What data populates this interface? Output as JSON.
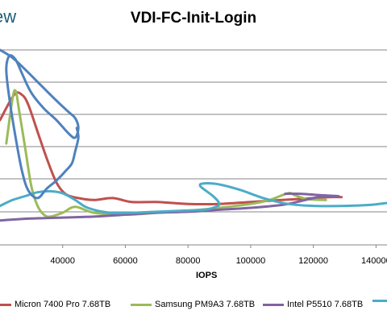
{
  "brand": "ew",
  "chart_data": {
    "type": "line",
    "title": "VDI-FC-Init-Login",
    "xlabel": "IOPS",
    "ylabel": "",
    "x_ticks": [
      "40000",
      "60000",
      "80000",
      "100000",
      "120000",
      "140000"
    ],
    "x_tick_values": [
      40000,
      60000,
      80000,
      100000,
      120000,
      140000
    ],
    "xlim": [
      20000,
      143500
    ],
    "ylim": [
      0,
      1
    ],
    "grid": true,
    "legend_position": "bottom",
    "series": [
      {
        "name": "Micron 7400 Pro 7.68TB",
        "color": "#c0504d",
        "points": [
          [
            20000,
            0.64
          ],
          [
            24500,
            0.77
          ],
          [
            27000,
            0.77
          ],
          [
            29000,
            0.72
          ],
          [
            32000,
            0.58
          ],
          [
            35000,
            0.44
          ],
          [
            38000,
            0.32
          ],
          [
            41000,
            0.26
          ],
          [
            45000,
            0.24
          ],
          [
            50000,
            0.23
          ],
          [
            56000,
            0.24
          ],
          [
            62000,
            0.22
          ],
          [
            70000,
            0.22
          ],
          [
            80000,
            0.21
          ],
          [
            90000,
            0.21
          ],
          [
            100000,
            0.22
          ],
          [
            110000,
            0.23
          ],
          [
            120000,
            0.24
          ],
          [
            125000,
            0.245
          ],
          [
            129000,
            0.245
          ]
        ]
      },
      {
        "name": "Samsung PM9A3 7.68TB",
        "color": "#9bbb59",
        "points": [
          [
            22000,
            0.52
          ],
          [
            24000,
            0.75
          ],
          [
            25000,
            0.79
          ],
          [
            26000,
            0.7
          ],
          [
            28000,
            0.5
          ],
          [
            30000,
            0.3
          ],
          [
            32000,
            0.2
          ],
          [
            34000,
            0.155
          ],
          [
            36000,
            0.145
          ],
          [
            40000,
            0.165
          ],
          [
            44000,
            0.195
          ],
          [
            50000,
            0.165
          ],
          [
            60000,
            0.155
          ],
          [
            70000,
            0.165
          ],
          [
            80000,
            0.175
          ],
          [
            90000,
            0.19
          ],
          [
            100000,
            0.21
          ],
          [
            106000,
            0.23
          ],
          [
            112000,
            0.265
          ],
          [
            114000,
            0.255
          ],
          [
            118000,
            0.235
          ],
          [
            124000,
            0.23
          ]
        ]
      },
      {
        "name": "Intel P5510 7.68TB",
        "color": "#8064a2",
        "points": [
          [
            20000,
            0.125
          ],
          [
            30000,
            0.135
          ],
          [
            40000,
            0.14
          ],
          [
            50000,
            0.145
          ],
          [
            60000,
            0.155
          ],
          [
            70000,
            0.165
          ],
          [
            80000,
            0.17
          ],
          [
            90000,
            0.18
          ],
          [
            100000,
            0.19
          ],
          [
            110000,
            0.205
          ],
          [
            116000,
            0.225
          ],
          [
            120000,
            0.24
          ],
          [
            124000,
            0.25
          ],
          [
            128000,
            0.25
          ],
          [
            122000,
            0.255
          ],
          [
            116000,
            0.262
          ],
          [
            111000,
            0.262
          ]
        ]
      },
      {
        "name": "",
        "color": "#4bacc6",
        "points": [
          [
            20000,
            0.2
          ],
          [
            24000,
            0.23
          ],
          [
            28000,
            0.25
          ],
          [
            32000,
            0.27
          ],
          [
            36000,
            0.275
          ],
          [
            40000,
            0.265
          ],
          [
            44000,
            0.23
          ],
          [
            48000,
            0.19
          ],
          [
            55000,
            0.165
          ],
          [
            62000,
            0.165
          ],
          [
            70000,
            0.17
          ],
          [
            78000,
            0.175
          ],
          [
            85000,
            0.18
          ],
          [
            88000,
            0.19
          ],
          [
            90000,
            0.21
          ],
          [
            88000,
            0.25
          ],
          [
            84000,
            0.3
          ],
          [
            85000,
            0.315
          ],
          [
            90000,
            0.31
          ],
          [
            97000,
            0.28
          ],
          [
            104000,
            0.24
          ],
          [
            112000,
            0.21
          ],
          [
            120000,
            0.2
          ],
          [
            130000,
            0.2
          ],
          [
            138000,
            0.205
          ],
          [
            143500,
            0.215
          ]
        ]
      },
      {
        "name": "",
        "color": "#4f81bd",
        "points": [
          [
            20000,
            1.0
          ],
          [
            24000,
            0.96
          ],
          [
            28000,
            0.9
          ],
          [
            33000,
            0.82
          ],
          [
            38000,
            0.74
          ],
          [
            42000,
            0.68
          ],
          [
            44000,
            0.65
          ],
          [
            45000,
            0.6
          ],
          [
            44000,
            0.55
          ],
          [
            42000,
            0.57
          ],
          [
            38000,
            0.64
          ],
          [
            34000,
            0.7
          ],
          [
            30000,
            0.78
          ],
          [
            27000,
            0.88
          ],
          [
            25000,
            0.95
          ],
          [
            23000,
            0.97
          ],
          [
            22000,
            0.9
          ],
          [
            23000,
            0.75
          ],
          [
            25000,
            0.55
          ],
          [
            27000,
            0.38
          ],
          [
            29000,
            0.28
          ],
          [
            32000,
            0.24
          ],
          [
            35000,
            0.29
          ],
          [
            38000,
            0.33
          ],
          [
            41000,
            0.38
          ],
          [
            43000,
            0.42
          ],
          [
            44000,
            0.48
          ],
          [
            45000,
            0.55
          ],
          [
            44500,
            0.6
          ]
        ]
      }
    ]
  }
}
